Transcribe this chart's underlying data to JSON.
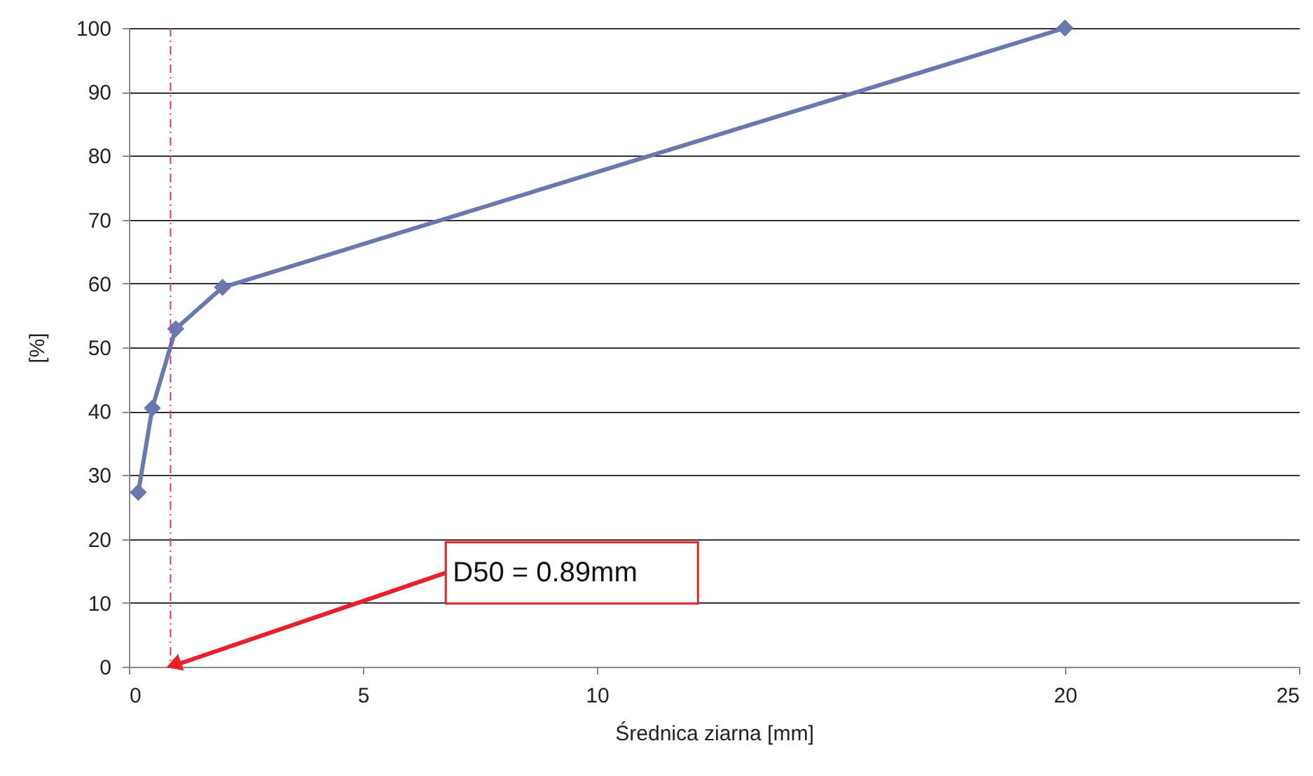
{
  "chart_data": {
    "type": "line",
    "xlabel": "Średnica ziarna [mm]",
    "ylabel": "[%]",
    "x": [
      0.2,
      0.5,
      1.0,
      2.0,
      20
    ],
    "series": [
      {
        "color": "#6a78b0",
        "values": [
          27.3,
          40.5,
          52.9,
          59.4,
          100
        ]
      }
    ],
    "xlim": [
      0,
      25
    ],
    "xticks": [
      0,
      5,
      10,
      20,
      25
    ],
    "ylim": [
      0,
      100
    ],
    "yticks": [
      0,
      10,
      20,
      30,
      40,
      50,
      60,
      70,
      80,
      90,
      100
    ],
    "grid": "y",
    "marker": "diamond",
    "line_style": "solid",
    "ref_lines": [
      {
        "axis": "x",
        "value": 0.89,
        "color": "#cc3399",
        "line_style": "dashed"
      }
    ],
    "annotations": [
      {
        "text": "D50 = 0.89mm",
        "x": 0.89,
        "y": 0
      }
    ]
  }
}
